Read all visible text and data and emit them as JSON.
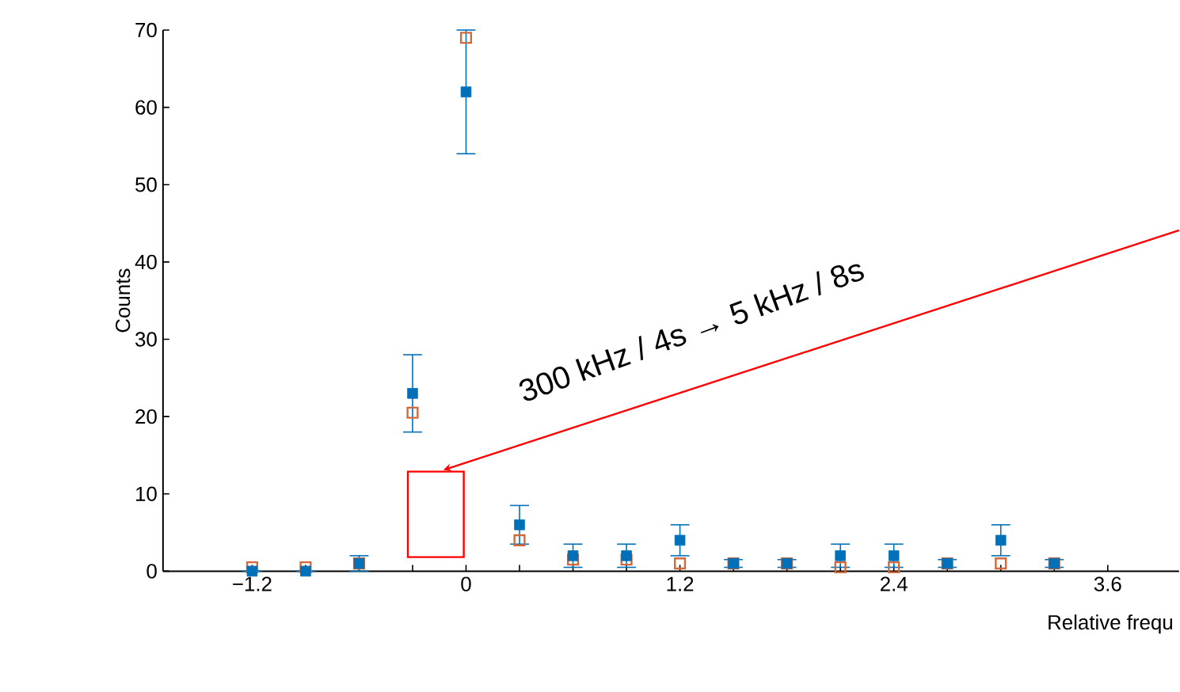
{
  "chart_data": {
    "type": "scatter",
    "xlabel": "Relative frequ",
    "ylabel": "Counts",
    "x": [
      -1.2,
      -0.9,
      -0.6,
      -0.3,
      0,
      0.3,
      0.6,
      0.9,
      1.2,
      1.5,
      1.8,
      2.1,
      2.4,
      2.7,
      3.0,
      3.3
    ],
    "series": [
      {
        "color": "#d2693a",
        "values": [
          0.5,
          0.5,
          1,
          20.5,
          69,
          4,
          1.5,
          1.5,
          1,
          1,
          1,
          0.5,
          0.5,
          1,
          1,
          1
        ]
      },
      {
        "color": "#0070b8",
        "values": [
          0,
          0,
          1,
          23,
          62,
          6,
          2,
          2,
          4,
          1,
          1,
          2,
          2,
          1,
          4,
          1
        ],
        "errors": [
          null,
          null,
          1,
          5,
          8,
          2.5,
          1.5,
          1.5,
          2,
          0.5,
          0.5,
          1.5,
          1.5,
          0.5,
          2,
          0.5
        ]
      }
    ],
    "marker": "square",
    "xlim": [
      -1.7,
      4.0
    ],
    "ylim": [
      0,
      70
    ],
    "xticks": [
      {
        "value": -1.2,
        "label": "−1.2"
      },
      {
        "value": -0.9,
        "label": null
      },
      {
        "value": -0.6,
        "label": null
      },
      {
        "value": -0.3,
        "label": null
      },
      0,
      {
        "value": 0.3,
        "label": null
      },
      {
        "value": 0.6,
        "label": null
      },
      {
        "value": 0.9,
        "label": null
      },
      1.2,
      {
        "value": 1.5,
        "label": null
      },
      {
        "value": 1.8,
        "label": null
      },
      {
        "value": 2.1,
        "label": null
      },
      2.4,
      {
        "value": 2.7,
        "label": null
      },
      {
        "value": 3.0,
        "label": null
      },
      {
        "value": 3.3,
        "label": null
      },
      3.6
    ],
    "yticks": [
      0,
      10,
      20,
      30,
      40,
      50,
      60,
      70
    ],
    "annotations": [
      "300 kHz / 4s → 5 kHz / 8s"
    ]
  }
}
